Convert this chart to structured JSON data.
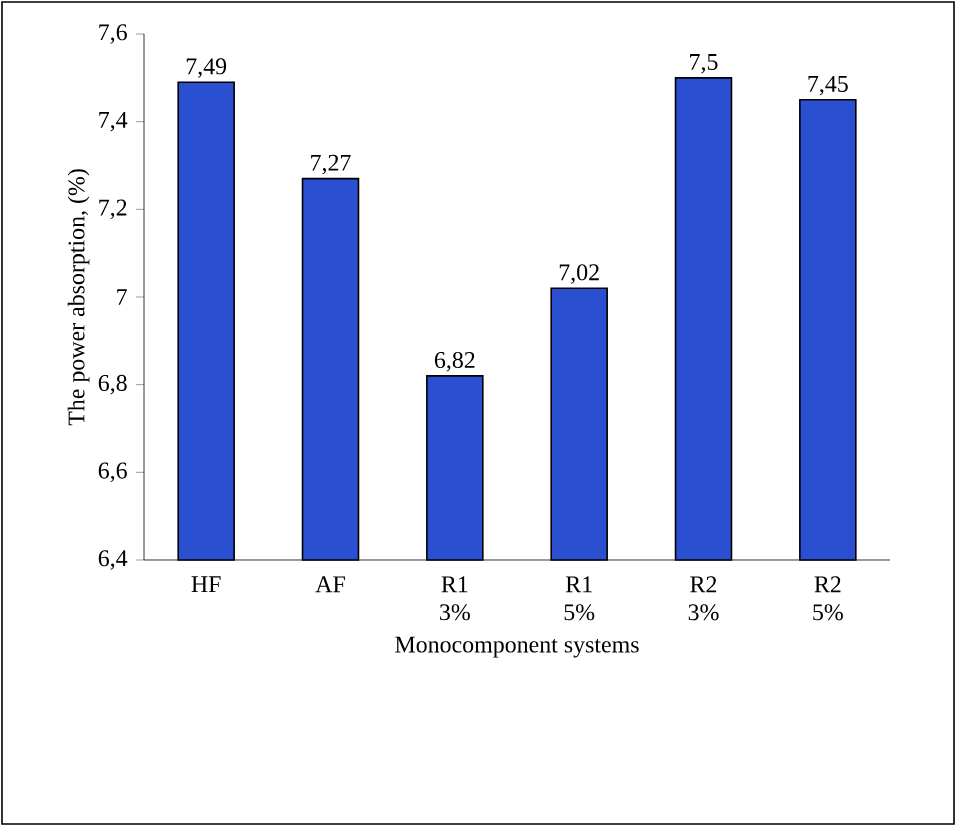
{
  "chart_data": {
    "type": "bar",
    "xlabel": "Monocomponent systems",
    "ylabel": "The power absorption, (%)",
    "categories": [
      "HF",
      "AF",
      "R1 3%",
      "R1 5%",
      "R2 3%",
      "R2 5%"
    ],
    "values": [
      7.49,
      7.27,
      6.82,
      7.02,
      7.5,
      7.45
    ],
    "value_labels": [
      "7,49",
      "7,27",
      "6,82",
      "7,02",
      "7,5",
      "7,45"
    ],
    "color": "#2b4fd1",
    "ylim": [
      6.4,
      7.6
    ],
    "yticks": [
      {
        "value": 6.4,
        "label": "6,4"
      },
      {
        "value": 6.6,
        "label": "6,6"
      },
      {
        "value": 6.8,
        "label": "6,8"
      },
      7,
      {
        "value": 7.2,
        "label": "7,2"
      },
      {
        "value": 7.4,
        "label": "7,4"
      },
      {
        "value": 7.6,
        "label": "7,6"
      }
    ]
  }
}
